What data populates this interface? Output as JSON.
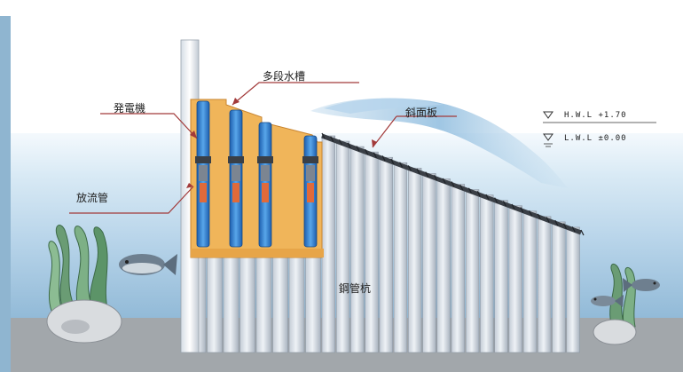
{
  "labels": {
    "generator": "発電機",
    "multistage_tank": "多段水槽",
    "slope_plate": "斜面板",
    "discharge_pipe": "放流管",
    "pile": "鋼管杭"
  },
  "water_levels": {
    "hwl": "H.W.L +1.70",
    "lwl": "L.W.L ±0.00"
  },
  "colors": {
    "tank": "#f0b55a",
    "pipe_blue": "#2f7fd0",
    "water": "#c8dff0",
    "seabed": "#9ea4a8",
    "label_line": "#a23a3a"
  }
}
